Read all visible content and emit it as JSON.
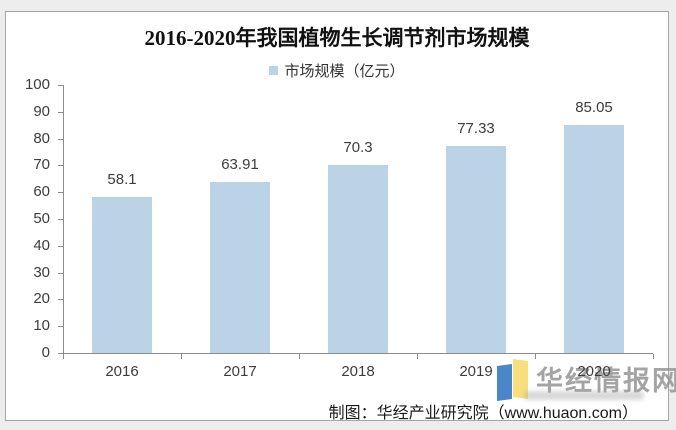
{
  "title": "2016-2020年我国植物生长调节剂市场规模",
  "legend": {
    "label": "市场规模（亿元）"
  },
  "chart_data": {
    "type": "bar",
    "title": "2016-2020年我国植物生长调节剂市场规模",
    "categories": [
      "2016",
      "2017",
      "2018",
      "2019",
      "2020"
    ],
    "series": [
      {
        "name": "市场规模（亿元）",
        "values": [
          58.1,
          63.91,
          70.3,
          77.33,
          85.05
        ]
      }
    ],
    "xlabel": "",
    "ylabel": "",
    "ylim": [
      0,
      100
    ],
    "ytick_step": 10,
    "grid": false,
    "legend_position": "top",
    "value_labels": true,
    "bar_color": "#BAD3E6"
  },
  "footer": {
    "credit": "制图：华经产业研究院（www.huaon.com）"
  },
  "watermark": {
    "text": "华经情报网",
    "logo": "huajing-book-logo",
    "logo_left_color": "#4A86C8",
    "logo_right_color": "#F7DF7E"
  },
  "colors": {
    "bar": "#BAD3E6",
    "axis": "#8C8C8C",
    "label": "#3D3D3D",
    "title": "#111111",
    "watermark_text": "#949494",
    "card_background": "#FFFFFF",
    "page_background": "#EDEDED",
    "card_border": "#A6A6A6"
  }
}
